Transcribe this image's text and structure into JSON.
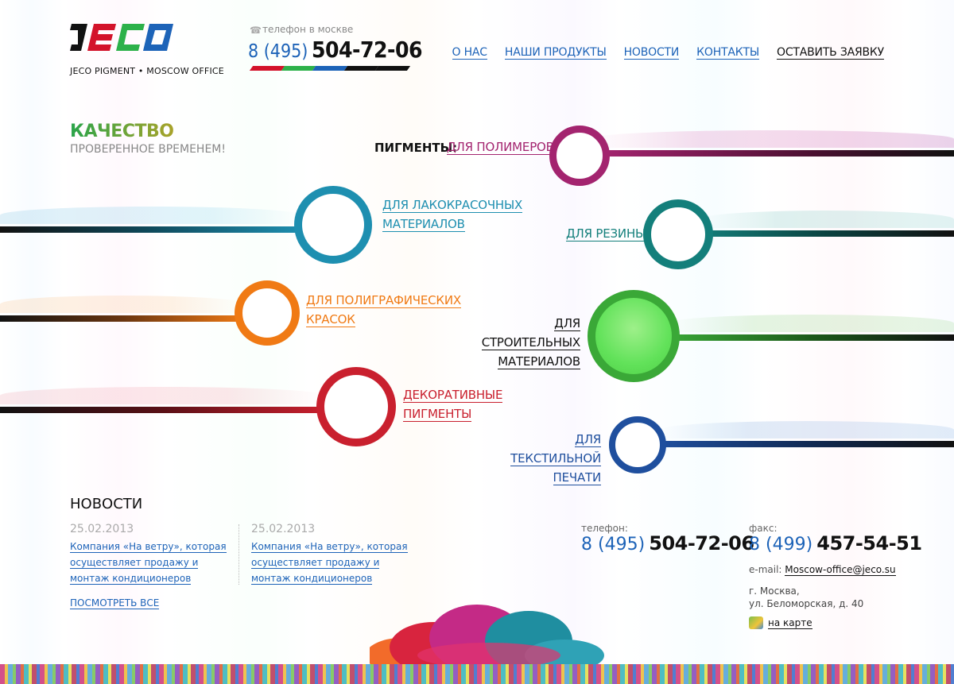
{
  "brand": {
    "logo_text": "JECO",
    "subtitle": "JECO PIGMENT • MOSCOW OFFICE"
  },
  "header_phone": {
    "label": "телефон в москве",
    "code": "8 (495)",
    "number": "504-72-06",
    "icon": "phone-icon",
    "bar_colors": [
      "#d3122a",
      "#2db14a",
      "#1d63b8",
      "#111111"
    ]
  },
  "nav": {
    "items": [
      {
        "label": "О НАС"
      },
      {
        "label": "НАШИ ПРОДУКТЫ"
      },
      {
        "label": "НОВОСТИ"
      },
      {
        "label": "КОНТАКТЫ"
      },
      {
        "label": "ОСТАВИТЬ ЗАЯВКУ"
      }
    ]
  },
  "tagline": {
    "title": "КАЧЕСТВО",
    "subtitle": "ПРОВЕРЕННОЕ ВРЕМЕНЕМ!"
  },
  "pigments": {
    "label": "ПИГМЕНТЫ:",
    "items": [
      {
        "line1": "ДЛЯ ПОЛИМЕРОВ",
        "line2": "",
        "color": "#a3246f"
      },
      {
        "line1": "ДЛЯ ЛАКОКРАСОЧНЫХ",
        "line2": "МАТЕРИАЛОВ",
        "color": "#1e8fb0"
      },
      {
        "line1": "ДЛЯ РЕЗИНЫ",
        "line2": "",
        "color": "#137f7b"
      },
      {
        "line1": "ДЛЯ ПОЛИГРАФИЧЕСКИХ",
        "line2": "КРАСОК",
        "color": "#f07a14"
      },
      {
        "line1": "ДЛЯ СТРОИТЕЛЬНЫХ",
        "line2": "МАТЕРИАЛОВ",
        "color": "#3aa837"
      },
      {
        "line1": "ДЕКОРАТИВНЫЕ",
        "line2": "ПИГМЕНТЫ",
        "color": "#c9202e"
      },
      {
        "line1": "ДЛЯ ТЕКСТИЛЬНОЙ",
        "line2": "ПЕЧАТИ",
        "color": "#1f4f9e"
      }
    ]
  },
  "news": {
    "title": "НОВОСТИ",
    "items": [
      {
        "date": "25.02.2013",
        "text": "Компания «На ветру», которая осуществляет продажу и монтаж кондиционеров"
      },
      {
        "date": "25.02.2013",
        "text": "Компания «На ветру», которая осуществляет продажу и монтаж кондиционеров"
      }
    ],
    "see_all": "ПОСМОТРЕТЬ ВСЕ"
  },
  "contacts": {
    "phone_label": "телефон:",
    "phone_code": "8 (495)",
    "phone_number": "504-72-06",
    "fax_label": "факс:",
    "fax_code": "8 (499)",
    "fax_number": "457-54-51",
    "email_label": "e-mail:",
    "email": "Moscow-office@jeco.su",
    "address_line1": "г. Москва,",
    "address_line2": "ул. Беломорская, д. 40",
    "map_label": "на карте",
    "map_icon": "map-icon"
  }
}
